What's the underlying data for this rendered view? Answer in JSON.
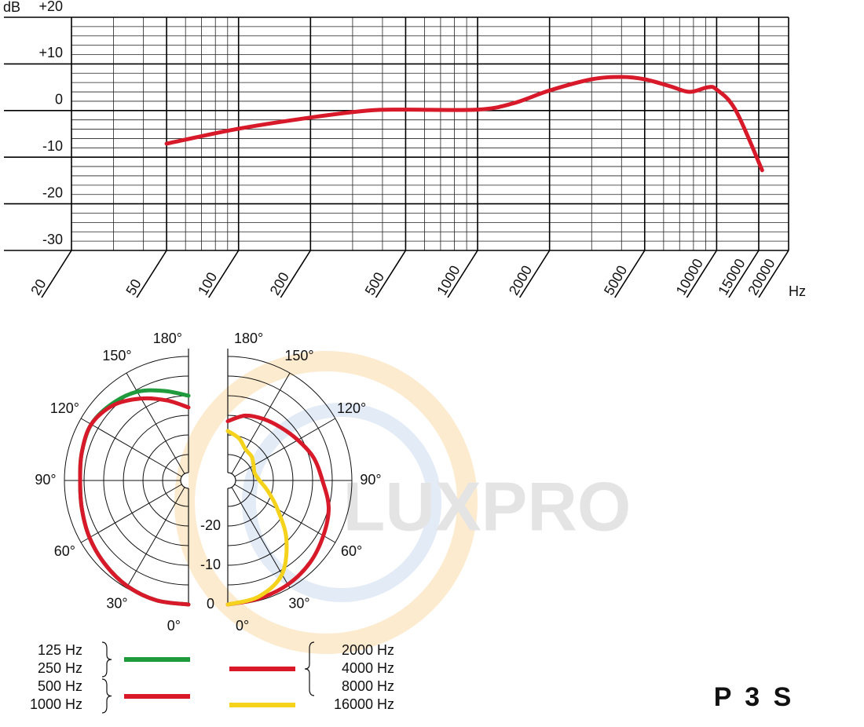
{
  "product": "P 3 S",
  "watermark": "LUXPRO",
  "chart_data": [
    {
      "type": "line",
      "ylabel": "dB",
      "xlabel": "Hz",
      "xscale": "log",
      "xlim": [
        20,
        20000
      ],
      "ylim": [
        -30,
        20
      ],
      "xticks": [
        20,
        50,
        100,
        200,
        500,
        1000,
        2000,
        5000,
        10000,
        15000,
        20000
      ],
      "yticks": [
        {
          "value": 20,
          "label": "+20"
        },
        {
          "value": 10,
          "label": "+10"
        },
        0,
        -10,
        -20,
        -30
      ],
      "xminor": [
        30,
        40,
        60,
        70,
        80,
        90,
        300,
        400,
        600,
        700,
        800,
        900,
        3000,
        4000,
        6000,
        7000,
        8000,
        9000
      ],
      "yminor": [
        18,
        16,
        14,
        12,
        8,
        6,
        4,
        2,
        -2,
        -4,
        -6,
        -8,
        -12,
        -14,
        -16,
        -18,
        -22,
        -24,
        -26,
        -28
      ],
      "grid": true,
      "color": "#d7192a",
      "x": [
        50,
        100,
        200,
        350,
        500,
        1000,
        1400,
        2000,
        3000,
        4000,
        5000,
        6400,
        7700,
        9200,
        10000,
        12000,
        15500
      ],
      "values": [
        -7.1,
        -3.9,
        -1.5,
        0,
        0.2,
        0.2,
        1.5,
        4.3,
        6.7,
        7.2,
        6.7,
        5.2,
        4.0,
        5.0,
        4.5,
        0.1,
        -12.8
      ]
    },
    {
      "type": "polar",
      "rlim": [
        -30,
        0
      ],
      "rticks": [
        -20,
        -10,
        0
      ],
      "rgrid": [
        -25,
        -20,
        -15,
        -10,
        -5,
        0
      ],
      "thetaticks": [
        {
          "value": 0,
          "label": "0°"
        },
        {
          "value": 30,
          "label": "30°"
        },
        {
          "value": 60,
          "label": "60°"
        },
        {
          "value": 90,
          "label": "90°"
        },
        {
          "value": 120,
          "label": "120°"
        },
        {
          "value": 150,
          "label": "150°"
        },
        {
          "value": 180,
          "label": "180°"
        }
      ],
      "theta": [
        0,
        15,
        30,
        45,
        60,
        75,
        90,
        105,
        120,
        135,
        150,
        165,
        180
      ],
      "series": [
        {
          "names": [
            "125 Hz",
            "250 Hz"
          ],
          "color": "#1f9a3c",
          "side": "left",
          "values": [
            0,
            0,
            -0.5,
            -1.5,
            -2.5,
            -3.5,
            -4,
            -3.5,
            -3,
            -4,
            -5.5,
            -8,
            -10
          ]
        },
        {
          "names": [
            "500 Hz",
            "1000 Hz"
          ],
          "color": "#d7192a",
          "side": "left",
          "values": [
            0,
            0,
            -0.5,
            -1.5,
            -2.5,
            -3.5,
            -4,
            -3.5,
            -3,
            -4.5,
            -7.5,
            -10.5,
            -13
          ]
        },
        {
          "names": [
            "2000 Hz",
            "4000 Hz",
            "8000 Hz"
          ],
          "color": "#d7192a",
          "side": "right",
          "values": [
            0,
            -0.5,
            -1,
            -2,
            -3.5,
            -5,
            -7.5,
            -9,
            -11,
            -12.5,
            -13.5,
            -14.5,
            -16.5
          ]
        },
        {
          "names": [
            "16000 Hz"
          ],
          "color": "#f5d31c",
          "side": "right",
          "values": [
            0,
            -1,
            -4,
            -10.5,
            -17,
            -21,
            -23.5,
            -24.5,
            -24,
            -23,
            -22.5,
            -20.5,
            -19
          ]
        }
      ]
    }
  ]
}
